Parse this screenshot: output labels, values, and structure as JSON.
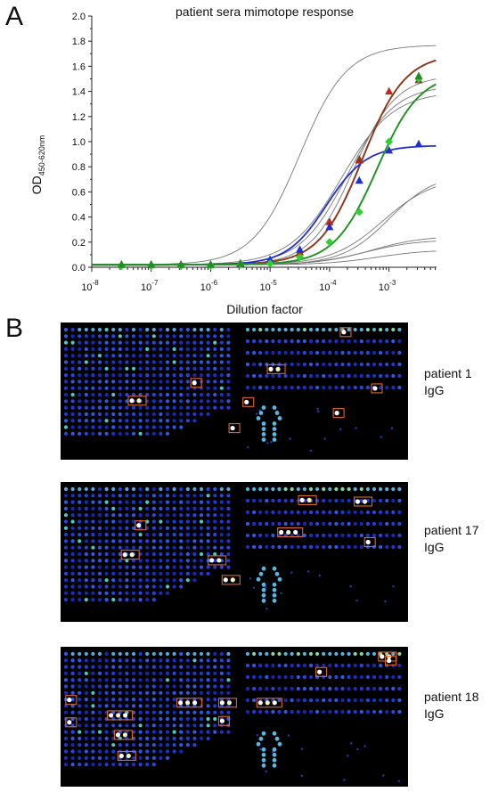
{
  "panel_a": {
    "letter": "A"
  },
  "panel_b": {
    "letter": "B"
  },
  "chart_data": {
    "type": "line",
    "title": "patient sera mimotope response",
    "xlabel": "Dilution factor",
    "ylabel_main": "OD",
    "ylabel_sub": "450-620nm",
    "x_scale": "log10",
    "xlim_exp": [
      -8,
      -2.2
    ],
    "ylim": [
      0,
      2.0
    ],
    "y_ticks": [
      "0.0",
      "0.2",
      "0.4",
      "0.6",
      "0.8",
      "1.0",
      "1.2",
      "1.4",
      "1.6",
      "1.8",
      "2.0"
    ],
    "x_ticks": [
      {
        "base": "10",
        "exp": "-8"
      },
      {
        "base": "10",
        "exp": "-7"
      },
      {
        "base": "10",
        "exp": "-6"
      },
      {
        "base": "10",
        "exp": "-5"
      },
      {
        "base": "10",
        "exp": "-4"
      },
      {
        "base": "10",
        "exp": "-3"
      }
    ],
    "grid": false,
    "series": [
      {
        "color": "#c0281b",
        "marker": "triangle",
        "bottom": 0.02,
        "top": 1.7,
        "ec50_exp": -3.45,
        "hill": 1.2,
        "points": [
          [
            -7.5,
            0.02
          ],
          [
            -7.0,
            0.02
          ],
          [
            -6.5,
            0.02
          ],
          [
            -6.0,
            0.02
          ],
          [
            -5.5,
            0.03
          ],
          [
            -5.0,
            0.05
          ],
          [
            -4.5,
            0.12
          ],
          [
            -4.0,
            0.36
          ],
          [
            -3.5,
            0.85
          ],
          [
            -3.0,
            1.4
          ],
          [
            -2.5,
            1.52
          ]
        ]
      },
      {
        "color": "#8a3a1a",
        "marker": "triangle",
        "bottom": 0.02,
        "top": 1.7,
        "ec50_exp": -3.45,
        "hill": 1.2,
        "points": [
          [
            -3.5,
            0.86
          ],
          [
            -2.5,
            1.49
          ]
        ]
      },
      {
        "color": "#1f2fd0",
        "marker": "triangle",
        "bottom": 0.02,
        "top": 0.97,
        "ec50_exp": -4.05,
        "hill": 1.3,
        "points": [
          [
            -7.5,
            0.02
          ],
          [
            -7.0,
            0.02
          ],
          [
            -6.5,
            0.02
          ],
          [
            -6.0,
            0.02
          ],
          [
            -5.5,
            0.03
          ],
          [
            -5.0,
            0.06
          ],
          [
            -4.5,
            0.14
          ],
          [
            -4.0,
            0.32
          ],
          [
            -3.5,
            0.69
          ],
          [
            -3.0,
            0.93
          ],
          [
            -2.5,
            0.98
          ]
        ]
      },
      {
        "color": "#2fd02f",
        "marker": "diamond",
        "bottom": 0.02,
        "top": 1.55,
        "ec50_exp": -3.2,
        "hill": 1.2,
        "points": [
          [
            -7.5,
            0.01
          ],
          [
            -7.0,
            0.01
          ],
          [
            -6.5,
            0.01
          ],
          [
            -6.0,
            0.01
          ],
          [
            -5.5,
            0.02
          ],
          [
            -5.0,
            0.03
          ],
          [
            -4.5,
            0.08
          ],
          [
            -4.0,
            0.2
          ],
          [
            -3.5,
            0.44
          ],
          [
            -3.0,
            1.0
          ],
          [
            -2.5,
            1.5
          ]
        ]
      },
      {
        "color": "#248c24",
        "marker": "triangle",
        "bottom": 0.02,
        "top": 1.55,
        "ec50_exp": -3.2,
        "hill": 1.2,
        "points": [
          [
            -7.5,
            0.02
          ],
          [
            -7.0,
            0.02
          ],
          [
            -6.5,
            0.02
          ],
          [
            -6.0,
            0.02
          ],
          [
            -5.5,
            0.03
          ],
          [
            -2.5,
            1.52
          ]
        ]
      }
    ],
    "reference_curves": [
      {
        "top": 1.77,
        "ec50_exp": -4.5,
        "hill": 1.1
      },
      {
        "top": 1.53,
        "ec50_exp": -3.6,
        "hill": 1.2
      },
      {
        "top": 1.45,
        "ec50_exp": -3.7,
        "hill": 1.1
      },
      {
        "top": 1.4,
        "ec50_exp": -3.8,
        "hill": 1.0
      },
      {
        "top": 0.75,
        "ec50_exp": -3.0,
        "hill": 1.1
      },
      {
        "top": 0.72,
        "ec50_exp": -3.1,
        "hill": 1.0
      },
      {
        "top": 0.25,
        "ec50_exp": -3.3,
        "hill": 1.0
      },
      {
        "top": 0.22,
        "ec50_exp": -3.4,
        "hill": 1.0
      },
      {
        "top": 0.14,
        "ec50_exp": -3.2,
        "hill": 1.0
      }
    ]
  },
  "microarrays": [
    {
      "label_line1": "patient 1",
      "label_line2": "IgG",
      "highlights": [
        [
          0.2,
          0.57,
          2
        ],
        [
          0.38,
          0.44,
          1
        ],
        [
          0.53,
          0.58,
          1
        ],
        [
          0.49,
          0.77,
          1
        ],
        [
          0.79,
          0.66,
          1
        ],
        [
          0.6,
          0.34,
          2
        ],
        [
          0.9,
          0.48,
          1
        ],
        [
          0.81,
          0.07,
          1
        ]
      ]
    },
    {
      "label_line1": "patient 17",
      "label_line2": "IgG",
      "highlights": [
        [
          0.18,
          0.52,
          2
        ],
        [
          0.22,
          0.31,
          1
        ],
        [
          0.43,
          0.56,
          2
        ],
        [
          0.47,
          0.7,
          2
        ],
        [
          0.63,
          0.36,
          3
        ],
        [
          0.69,
          0.13,
          2
        ],
        [
          0.85,
          0.14,
          2
        ],
        [
          0.88,
          0.43,
          1
        ]
      ]
    },
    {
      "label_line1": "patient 18",
      "label_line2": "IgG",
      "highlights": [
        [
          0.02,
          0.38,
          1
        ],
        [
          0.02,
          0.54,
          1
        ],
        [
          0.14,
          0.49,
          3
        ],
        [
          0.16,
          0.63,
          2
        ],
        [
          0.17,
          0.78,
          2
        ],
        [
          0.34,
          0.4,
          3
        ],
        [
          0.46,
          0.4,
          2
        ],
        [
          0.46,
          0.53,
          1
        ],
        [
          0.57,
          0.4,
          3
        ],
        [
          0.74,
          0.18,
          1
        ],
        [
          0.92,
          0.07,
          2
        ],
        [
          0.94,
          0.1,
          1
        ]
      ]
    }
  ]
}
